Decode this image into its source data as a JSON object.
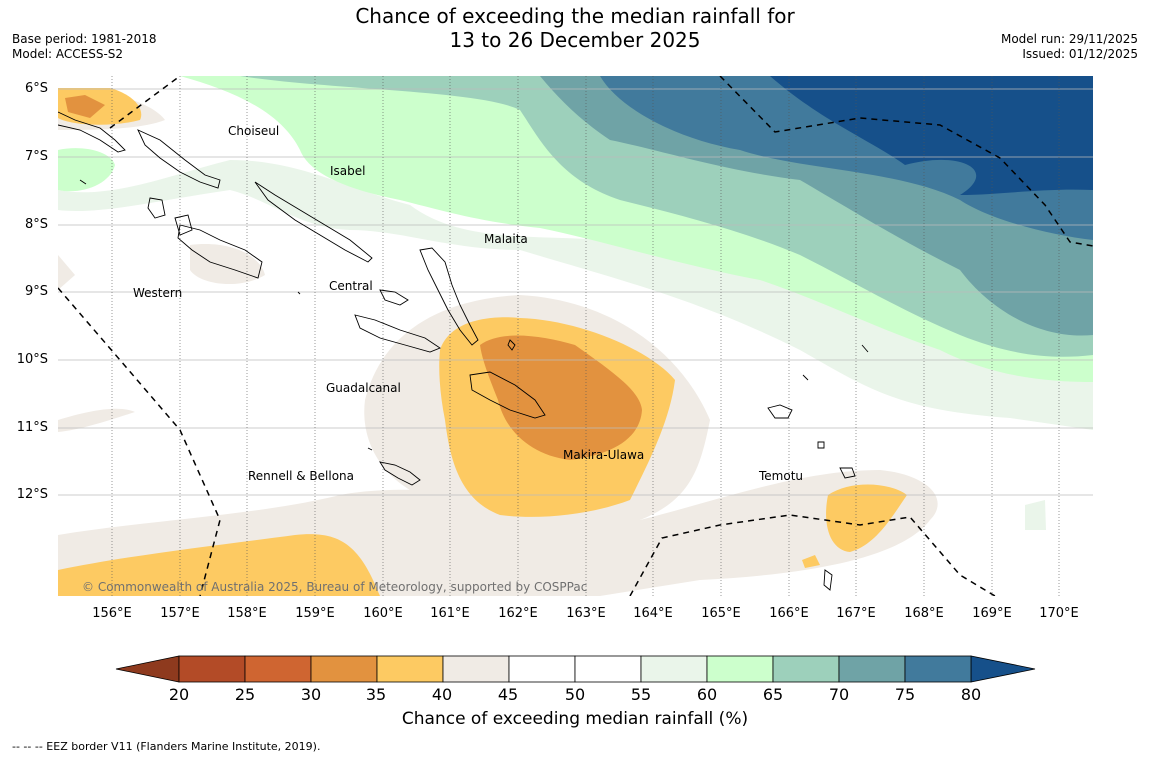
{
  "title": {
    "line1": "Chance of exceeding the median rainfall for",
    "line2": "13 to 26 December 2025"
  },
  "meta_left": {
    "base_period": "Base period: 1981-2018",
    "model": "Model: ACCESS-S2"
  },
  "meta_right": {
    "model_run": "Model run: 29/11/2025",
    "issued": "Issued: 01/12/2025"
  },
  "axes": {
    "lat_labels": [
      "6°S",
      "7°S",
      "8°S",
      "9°S",
      "10°S",
      "11°S",
      "12°S"
    ],
    "lon_labels": [
      "156°E",
      "157°E",
      "158°E",
      "159°E",
      "160°E",
      "161°E",
      "162°E",
      "163°E",
      "164°E",
      "165°E",
      "166°E",
      "167°E",
      "168°E",
      "169°E",
      "170°E"
    ]
  },
  "places": [
    {
      "label": "Choiseul"
    },
    {
      "label": "Isabel"
    },
    {
      "label": "Malaita"
    },
    {
      "label": "Central"
    },
    {
      "label": "Western"
    },
    {
      "label": "Guadalcanal"
    },
    {
      "label": "Makira-Ulawa"
    },
    {
      "label": "Rennell & Bellona"
    },
    {
      "label": "Temotu"
    }
  ],
  "copyright": "© Commonwealth of Australia 2025, Bureau of Meteorology, supported by COSPPac",
  "colorbar": {
    "title": "Chance of exceeding median rainfall (%)",
    "ticks": [
      "20",
      "25",
      "30",
      "35",
      "40",
      "45",
      "50",
      "55",
      "60",
      "65",
      "70",
      "75",
      "80"
    ],
    "under_color": "#8e3a1e",
    "over_color": "#16508a",
    "colors": [
      "#b34b27",
      "#cf6531",
      "#e2923f",
      "#fdca62",
      "#f0ebe5",
      "#ffffff",
      "#ffffff",
      "#eaf5ea",
      "#ccffcc",
      "#9dd0bb",
      "#6fa3a6",
      "#417a9c"
    ]
  },
  "footnote": "--  --  -- EEZ border V11 (Flanders Marine Institute, 2019)."
}
